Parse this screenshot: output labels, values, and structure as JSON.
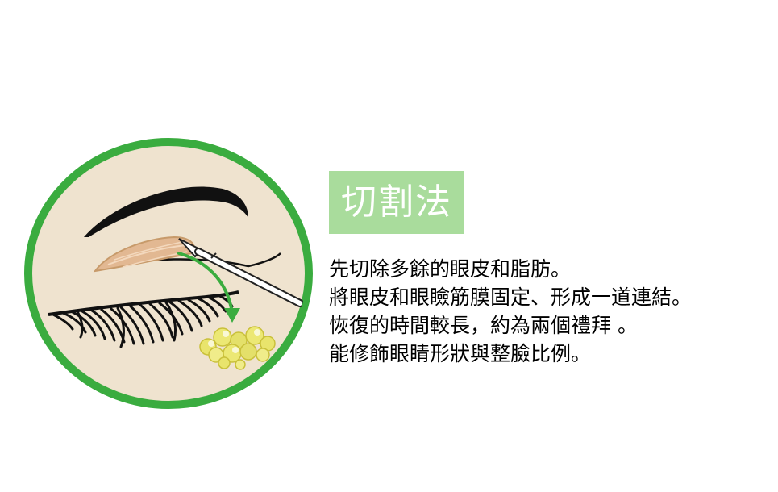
{
  "title": "切割法",
  "lines": [
    "先切除多餘的眼皮和脂肪。",
    "將眼皮和眼瞼筋膜固定、形成一道連結。",
    "恢復的時間較長，約為兩個禮拜 。",
    "能修飾眼睛形狀與整臉比例。"
  ],
  "colors": {
    "ring": "#3aac3f",
    "skin": "#efe3cf",
    "title_bg": "#a9dc9c",
    "arrow": "#3aac3f",
    "fat": "#e4e06a",
    "eyelid_flap": "#e2b892"
  }
}
